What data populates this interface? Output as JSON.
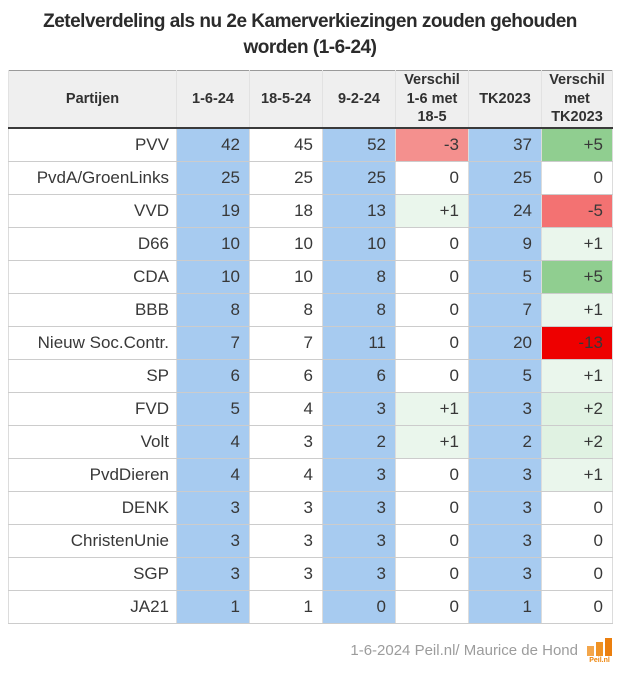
{
  "title": "Zetelverdeling als nu 2e Kamerverkiezingen zouden gehouden worden (1-6-24)",
  "chart_data": {
    "type": "table",
    "title": "Zetelverdeling als nu 2e Kamerverkiezingen zouden gehouden worden (1-6-24)",
    "columns": [
      "Partijen",
      "1-6-24",
      "18-5-24",
      "9-2-24",
      "Verschil 1-6 met 18-5",
      "TK2023",
      "Verschil met TK2023"
    ],
    "rows": [
      {
        "party": "PVV",
        "values": [
          "42",
          "45",
          "52",
          "-3",
          "37",
          "+5"
        ]
      },
      {
        "party": "PvdA/GroenLinks",
        "values": [
          "25",
          "25",
          "25",
          "0",
          "25",
          "0"
        ]
      },
      {
        "party": "VVD",
        "values": [
          "19",
          "18",
          "13",
          "+1",
          "24",
          "-5"
        ]
      },
      {
        "party": "D66",
        "values": [
          "10",
          "10",
          "10",
          "0",
          "9",
          "+1"
        ]
      },
      {
        "party": "CDA",
        "values": [
          "10",
          "10",
          "8",
          "0",
          "5",
          "+5"
        ]
      },
      {
        "party": "BBB",
        "values": [
          "8",
          "8",
          "8",
          "0",
          "7",
          "+1"
        ]
      },
      {
        "party": "Nieuw Soc.Contr.",
        "values": [
          "7",
          "7",
          "11",
          "0",
          "20",
          "-13"
        ]
      },
      {
        "party": "SP",
        "values": [
          "6",
          "6",
          "6",
          "0",
          "5",
          "+1"
        ]
      },
      {
        "party": "FVD",
        "values": [
          "5",
          "4",
          "3",
          "+1",
          "3",
          "+2"
        ]
      },
      {
        "party": "Volt",
        "values": [
          "4",
          "3",
          "2",
          "+1",
          "2",
          "+2"
        ]
      },
      {
        "party": "PvdDieren",
        "values": [
          "4",
          "4",
          "3",
          "0",
          "3",
          "+1"
        ]
      },
      {
        "party": "DENK",
        "values": [
          "3",
          "3",
          "3",
          "0",
          "3",
          "0"
        ]
      },
      {
        "party": "ChristenUnie",
        "values": [
          "3",
          "3",
          "3",
          "0",
          "3",
          "0"
        ]
      },
      {
        "party": "SGP",
        "values": [
          "3",
          "3",
          "3",
          "0",
          "3",
          "0"
        ]
      },
      {
        "party": "JA21",
        "values": [
          "1",
          "1",
          "0",
          "0",
          "1",
          "0"
        ]
      }
    ],
    "blue_value_columns": [
      0,
      2,
      4
    ],
    "diff_value_columns": [
      3,
      5
    ]
  },
  "colors": {
    "column_blue": "#a7cbf0",
    "diff_cell": {
      "-13": "#ee0000",
      "-5": "#f37272",
      "-3": "#f4908e",
      "0": "",
      "+1": "#eaf6ec",
      "+2": "#e0f2e2",
      "+5": "#90ce90"
    },
    "logo_bars": [
      "#f3a64b",
      "#ef9224",
      "#eb7f0e"
    ],
    "logo_text": "#ee8408"
  },
  "footer": {
    "credit": "1-6-2024 Peil.nl/ Maurice de Hond",
    "logo_label": "Peil.nl"
  }
}
